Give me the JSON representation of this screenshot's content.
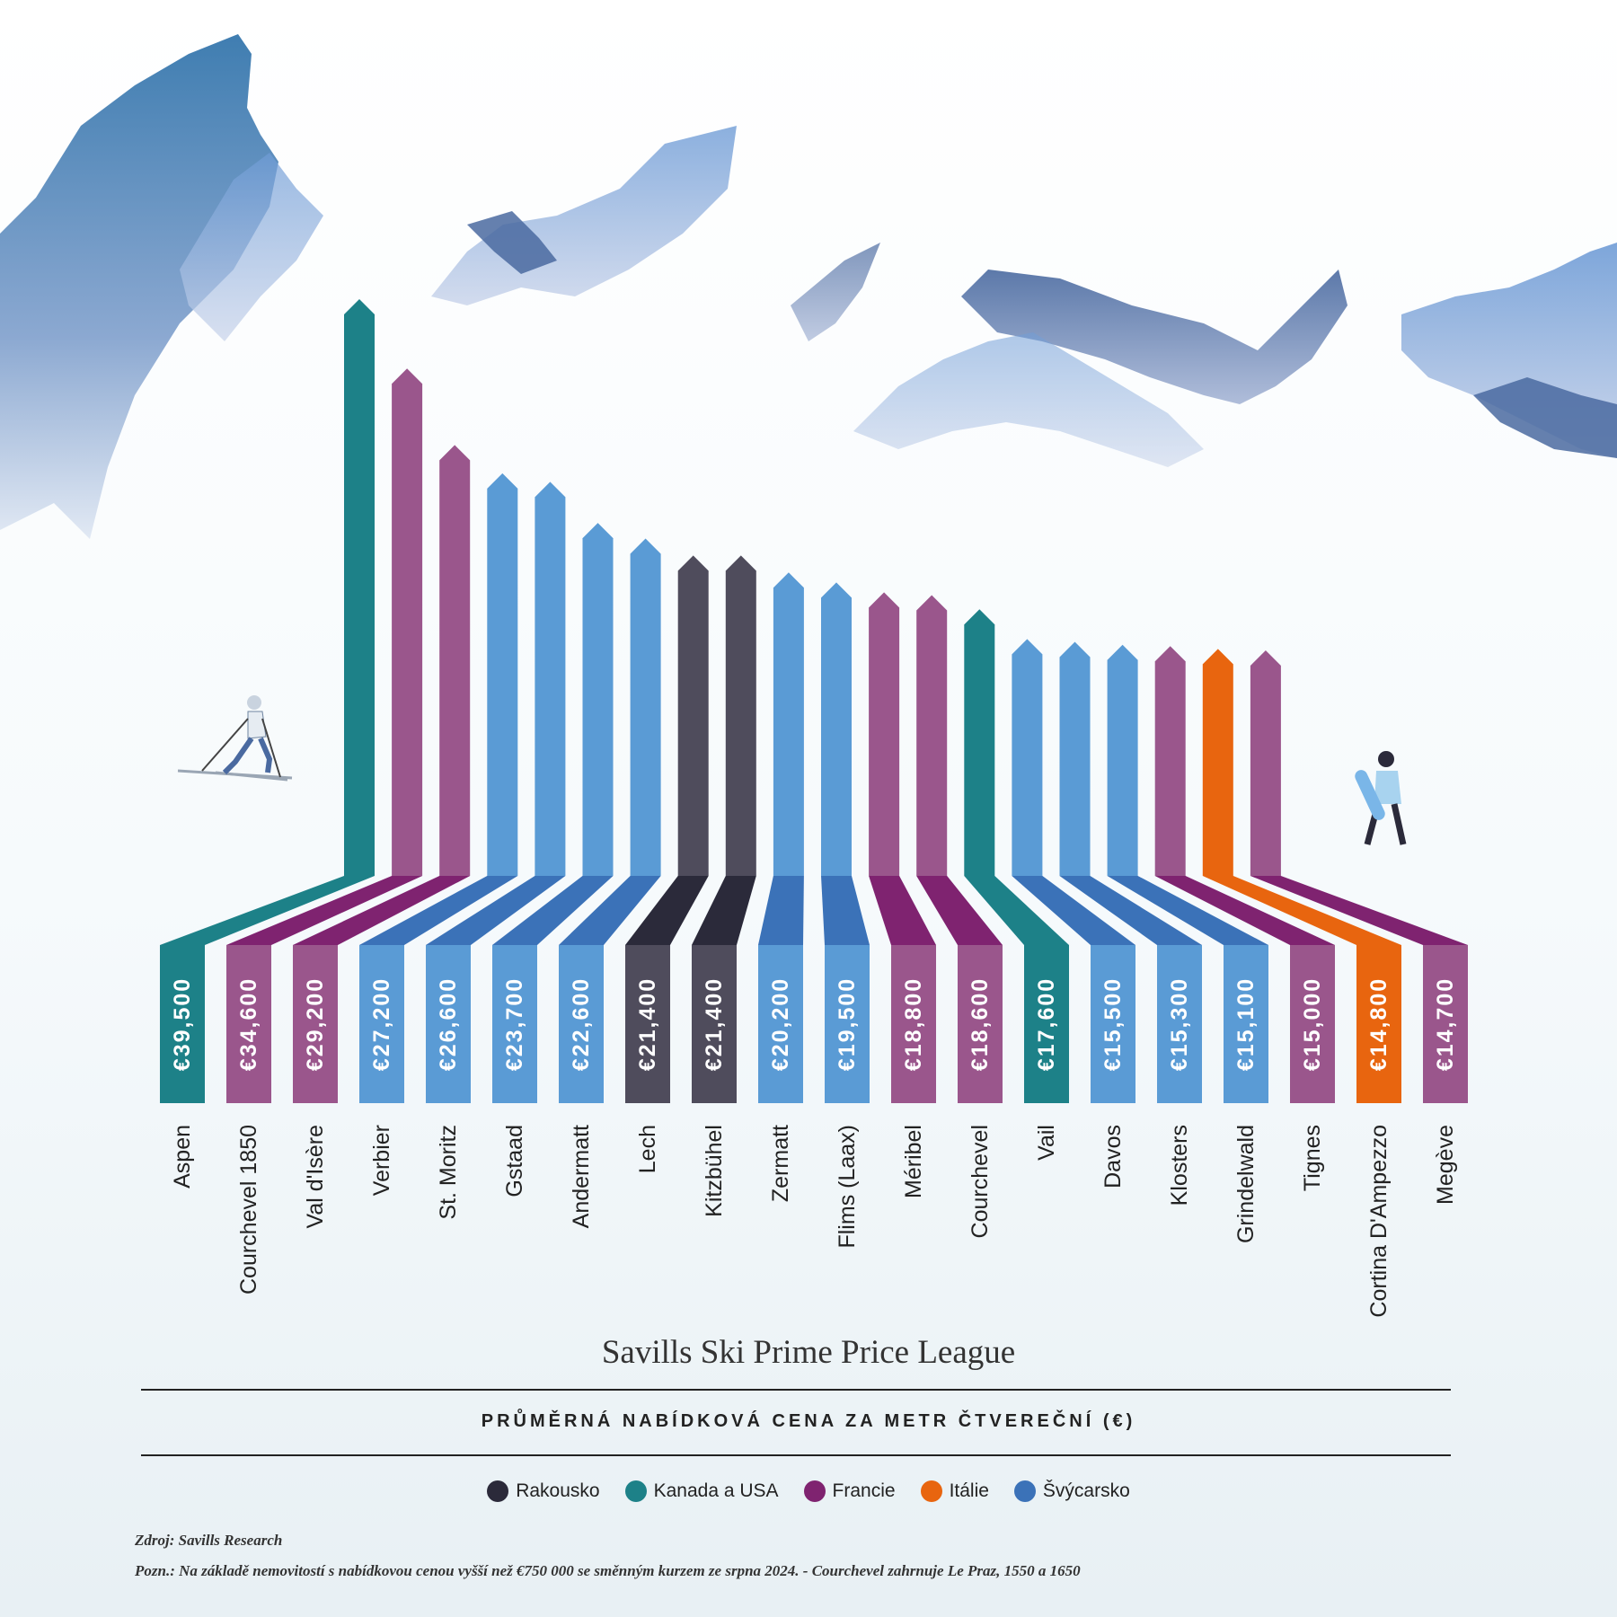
{
  "chart_data": {
    "type": "bar",
    "title": "Savills Ski Prime Price League",
    "subtitle": "PRŮMĚRNÁ NABÍDKOVÁ CENA ZA METR ČTVEREČNÍ (€)",
    "categories": [
      "Aspen",
      "Courchevel 1850",
      "Val d'Isère",
      "Verbier",
      "St. Moritz",
      "Gstaad",
      "Andermatt",
      "Lech",
      "Kitzbühel",
      "Zermatt",
      "Flims (Laax)",
      "Méribel",
      "Courchevel",
      "Vail",
      "Davos",
      "Klosters",
      "Grindelwald",
      "Tignes",
      "Cortina D'Ampezzo",
      "Megève"
    ],
    "values": [
      39500,
      34600,
      29200,
      27200,
      26600,
      23700,
      22600,
      21400,
      21400,
      20200,
      19500,
      18800,
      18600,
      17600,
      15500,
      15300,
      15100,
      15000,
      14800,
      14700
    ],
    "value_labels": [
      "€39,500",
      "€34,600",
      "€29,200",
      "€27,200",
      "€26,600",
      "€23,700",
      "€22,600",
      "€21,400",
      "€21,400",
      "€20,200",
      "€19,500",
      "€18,800",
      "€18,600",
      "€17,600",
      "€15,500",
      "€15,300",
      "€15,100",
      "€15,000",
      "€14,800",
      "€14,700"
    ],
    "countries": [
      "Kanada a USA",
      "Francie",
      "Francie",
      "Švýcarsko",
      "Švýcarsko",
      "Švýcarsko",
      "Švýcarsko",
      "Rakousko",
      "Rakousko",
      "Švýcarsko",
      "Švýcarsko",
      "Francie",
      "Francie",
      "Kanada a USA",
      "Švýcarsko",
      "Švýcarsko",
      "Švýcarsko",
      "Francie",
      "Itálie",
      "Francie"
    ],
    "legend": [
      {
        "name": "Rakousko",
        "color": "#2b2a3a"
      },
      {
        "name": "Kanada a USA",
        "color": "#1d8188"
      },
      {
        "name": "Francie",
        "color": "#7f2370"
      },
      {
        "name": "Itálie",
        "color": "#e8650f"
      },
      {
        "name": "Švýcarsko",
        "color": "#3b72b8"
      }
    ],
    "colors": {
      "Rakousko": {
        "upper": "#4f4c5c",
        "lower": "#2b2a3a"
      },
      "Kanada a USA": {
        "upper": "#1d8188",
        "lower": "#1d8188"
      },
      "Francie": {
        "upper": "#9a568c",
        "lower": "#7f2370"
      },
      "Itálie": {
        "upper": "#e8650f",
        "lower": "#e8650f"
      },
      "Švýcarsko": {
        "upper": "#5a9bd5",
        "lower": "#3b72b8"
      }
    },
    "legend_placement": "bottom",
    "grid": false
  },
  "notes": {
    "source": "Zdroj: Savills Research",
    "footnote": "Pozn.: Na základě nemovitostí s nabídkovou cenou vyšší než €750 000 se směnným kurzem ze srpna 2024. - Courchevel zahrnuje Le Praz, 1550 a 1650"
  }
}
